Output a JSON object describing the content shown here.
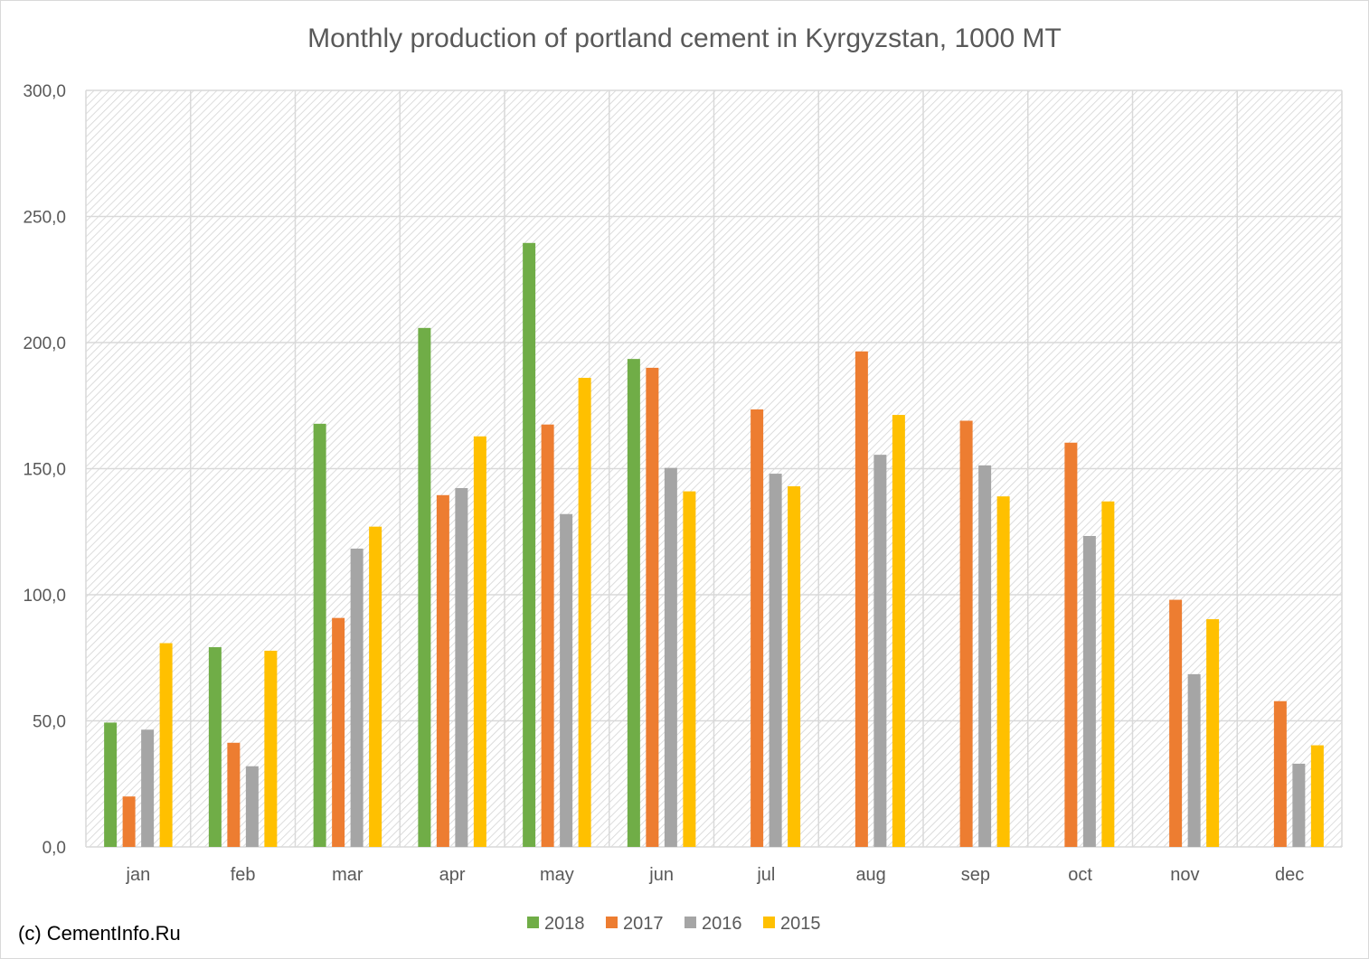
{
  "copyright": "(c) CementInfo.Ru",
  "chart_data": {
    "type": "bar",
    "title": "Monthly production of portland cement in Kyrgyzstan, 1000 MT",
    "xlabel": "",
    "ylabel": "",
    "ylim": [
      0,
      300
    ],
    "yticks": [
      "0,0",
      "50,0",
      "100,0",
      "150,0",
      "200,0",
      "250,0",
      "300,0"
    ],
    "ytick_values": [
      0,
      50,
      100,
      150,
      200,
      250,
      300
    ],
    "grid": true,
    "background": "hatched",
    "legend_position": "bottom",
    "categories": [
      "jan",
      "feb",
      "mar",
      "apr",
      "may",
      "jun",
      "jul",
      "aug",
      "sep",
      "oct",
      "nov",
      "dec"
    ],
    "series": [
      {
        "name": "2018",
        "color": "#70ad47",
        "values": [
          49.3,
          79.2,
          167.8,
          205.8,
          239.5,
          193.5,
          null,
          null,
          null,
          null,
          null,
          null
        ]
      },
      {
        "name": "2017",
        "color": "#ed7d31",
        "values": [
          20.0,
          41.3,
          90.8,
          139.5,
          167.5,
          190.0,
          173.5,
          196.5,
          169.0,
          160.3,
          98.0,
          57.8
        ]
      },
      {
        "name": "2016",
        "color": "#a5a5a5",
        "values": [
          46.5,
          32.0,
          118.3,
          142.3,
          132.0,
          150.3,
          148.0,
          155.5,
          151.3,
          123.3,
          68.5,
          33.0
        ]
      },
      {
        "name": "2015",
        "color": "#ffc000",
        "values": [
          80.8,
          77.8,
          127.0,
          162.8,
          186.0,
          141.0,
          143.0,
          171.3,
          139.0,
          137.0,
          90.3,
          40.3
        ]
      }
    ]
  }
}
